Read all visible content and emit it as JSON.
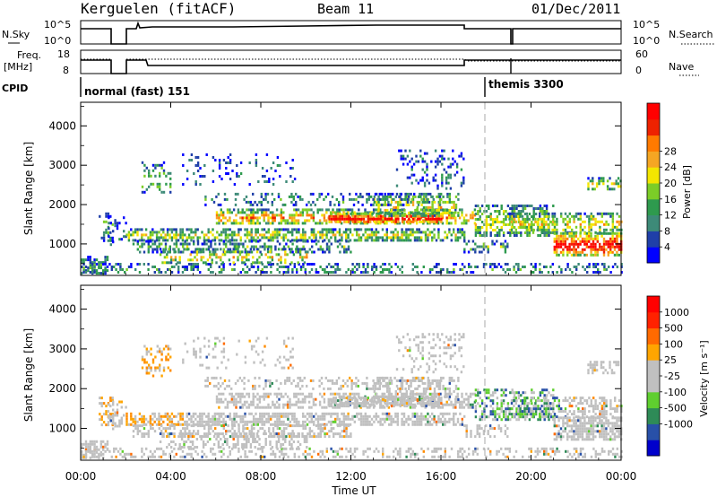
{
  "header": {
    "radar": "Kerguelen (fitACF)",
    "beam": "Beam 11",
    "date": "01/Dec/2011"
  },
  "nsky_panel": {
    "left_label": "N.Sky",
    "right_label": "N.Search",
    "ticks": [
      "10^5",
      "10^0"
    ]
  },
  "freq_panel": {
    "left_label_line1": "Freq.",
    "left_label_line2": "[MHz]",
    "right_label": "Nave",
    "left_ticks": [
      "18",
      "8"
    ],
    "right_ticks": [
      "60",
      "0"
    ]
  },
  "cpid": {
    "label": "CPID",
    "mode1": "normal (fast) 151",
    "mode2": "themis 3300"
  },
  "colors": {
    "power": [
      "#0000ff",
      "#1f3fa8",
      "#3d8a78",
      "#2e9a4e",
      "#7ccd27",
      "#f3e600",
      "#f5a623",
      "#ff7a00",
      "#ee2200",
      "#ff0000"
    ],
    "velocity": [
      "#0000cc",
      "#2850a8",
      "#2e8b57",
      "#5fcf2f",
      "#c0c0c0",
      "#c0c0c0",
      "#ffa500",
      "#ff6a00",
      "#ff2200",
      "#ff0000"
    ]
  },
  "chart_data": [
    {
      "type": "heatmap",
      "name": "power",
      "ylabel": "Slant Range [km]",
      "yticks": [
        "1000",
        "2000",
        "3000",
        "4000"
      ],
      "ylim": [
        200,
        4600
      ],
      "colorbar_label": "Power [dB]",
      "colorbar_ticks": [
        "4",
        "8",
        "12",
        "16",
        "20",
        "24",
        "28"
      ],
      "clim": [
        0,
        32
      ]
    },
    {
      "type": "heatmap",
      "name": "velocity",
      "ylabel": "Slant Range [km]",
      "yticks": [
        "1000",
        "2000",
        "3000",
        "4000"
      ],
      "ylim": [
        200,
        4600
      ],
      "colorbar_label": "Velocity [m s⁻¹]",
      "colorbar_ticks": [
        "1000",
        "500",
        "100",
        "25",
        "-25",
        "-100",
        "-500",
        "-1000"
      ]
    }
  ],
  "xaxis": {
    "label": "Time UT",
    "ticks": [
      "00:00",
      "04:00",
      "08:00",
      "12:00",
      "16:00",
      "20:00",
      "00:00"
    ],
    "xlim": [
      0,
      24
    ]
  }
}
